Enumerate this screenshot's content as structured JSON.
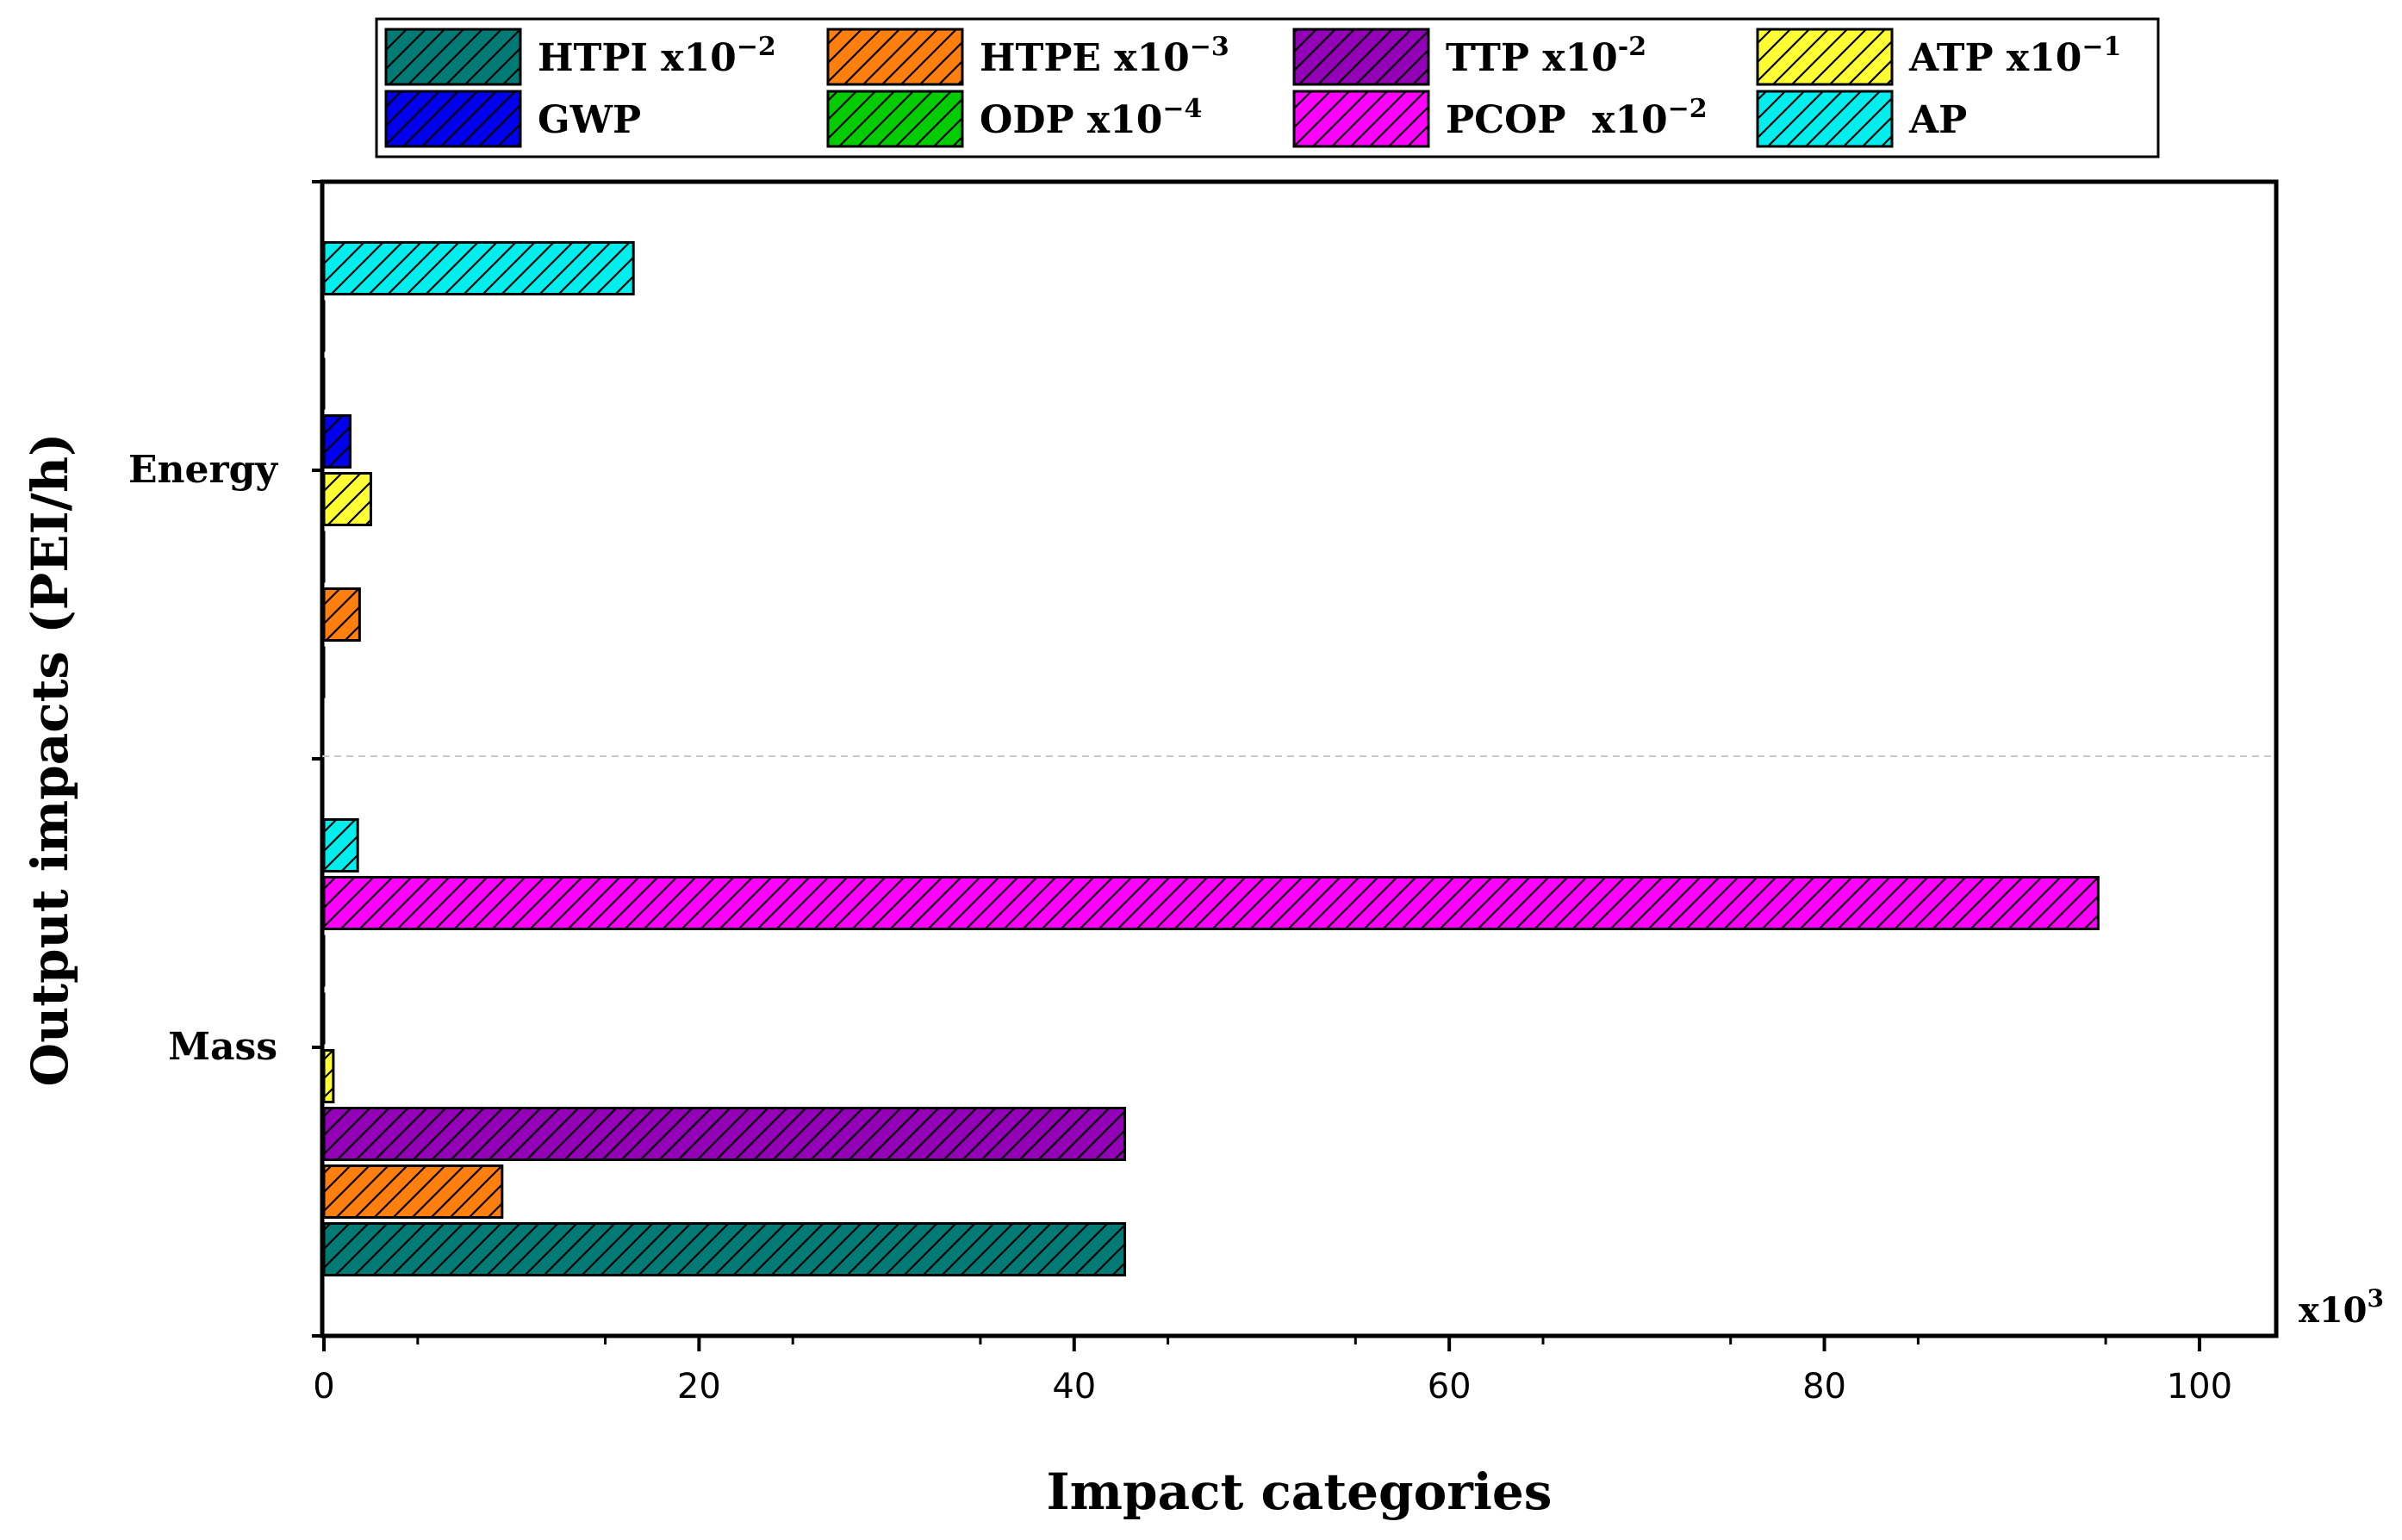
{
  "chart_data": {
    "type": "bar",
    "orientation": "horizontal",
    "title": "",
    "xlabel": "Impact categories",
    "ylabel": "Output impacts (PEI/h)",
    "x_multiplier": "x10",
    "x_multiplier_exp": "3",
    "xlim": [
      0,
      104
    ],
    "xticks": [
      0,
      20,
      40,
      60,
      80,
      100
    ],
    "xtick_labels": [
      "0",
      "20",
      "40",
      "60",
      "80",
      "100"
    ],
    "categories": [
      "Mass",
      "Energy"
    ],
    "legend_position": "top",
    "series": [
      {
        "key": "htpi",
        "name": "HTPI x10",
        "exp": "−2",
        "color": "#007A74",
        "values": [
          42.7,
          0
        ]
      },
      {
        "key": "htpe",
        "name": "HTPE x10",
        "exp": "−3",
        "color": "#FF7F0E",
        "values": [
          9.5,
          1.9
        ]
      },
      {
        "key": "ttp",
        "name": "TTP x10",
        "exp": "-2",
        "color": "#9400B8",
        "values": [
          42.7,
          0
        ]
      },
      {
        "key": "atp",
        "name": "ATP x10",
        "exp": "−1",
        "color": "#FFFF33",
        "values": [
          0.5,
          2.5
        ]
      },
      {
        "key": "gwp",
        "name": "GWP",
        "exp": "",
        "color": "#0000EE",
        "values": [
          0,
          1.4
        ]
      },
      {
        "key": "odp",
        "name": "ODP x10",
        "exp": "−4",
        "color": "#00CC00",
        "values": [
          0,
          0
        ]
      },
      {
        "key": "pcop",
        "name": "PCOP  x10",
        "exp": "−2",
        "color": "#FF00FF",
        "values": [
          94.6,
          0
        ]
      },
      {
        "key": "ap",
        "name": "AP",
        "exp": "",
        "color": "#00EEEE",
        "values": [
          1.8,
          16.5
        ]
      }
    ]
  }
}
